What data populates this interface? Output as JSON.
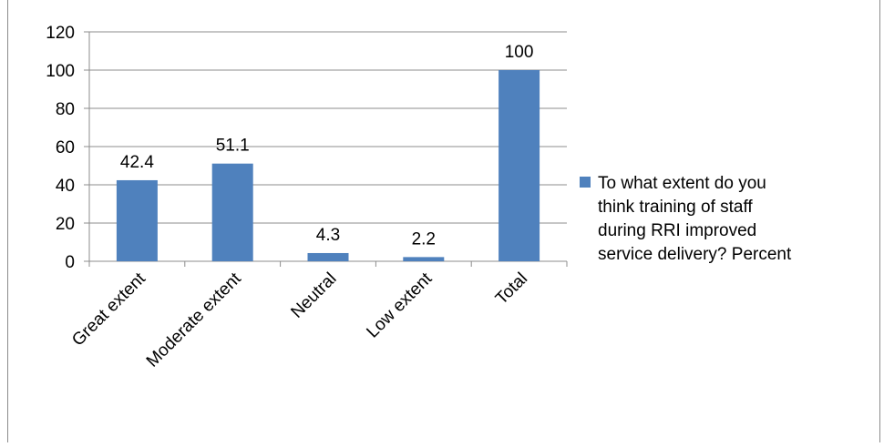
{
  "chart_data": {
    "type": "bar",
    "categories": [
      "Great extent",
      "Moderate extent",
      "Neutral",
      "Low extent",
      "Total"
    ],
    "series": [
      {
        "name": "To what extent do you think training of staff during RRI improved service delivery? Percent",
        "values": [
          42.4,
          51.1,
          4.3,
          2.2,
          100
        ],
        "color": "#4f81bd"
      }
    ],
    "data_labels": [
      "42.4",
      "51.1",
      "4.3",
      "2.2",
      "100"
    ],
    "yticks": [
      "0",
      "20",
      "40",
      "60",
      "80",
      "100",
      "120"
    ],
    "ylim": [
      0,
      120
    ],
    "grid": true,
    "legend_position": "right",
    "legend_lines": [
      "To what extent do you",
      "think training of staff",
      "during RRI improved",
      "service delivery? Percent"
    ],
    "title": "",
    "xlabel": "",
    "ylabel": ""
  }
}
